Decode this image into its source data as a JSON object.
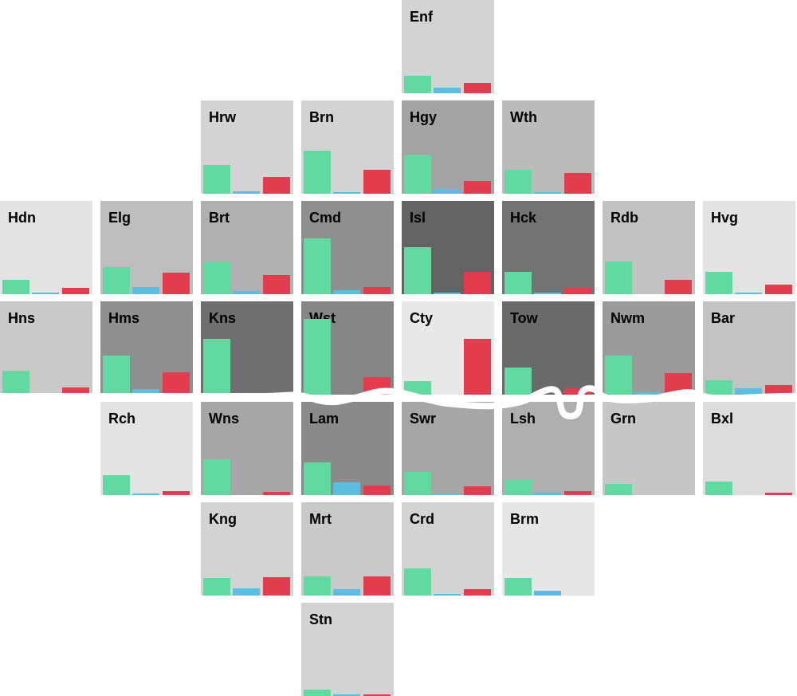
{
  "chart_data": {
    "type": "bar",
    "layout": "tile-grid map of boroughs",
    "colors": {
      "series1": "#62d9a0",
      "series2": "#5bbde0",
      "series3": "#e23d4f"
    },
    "tiles": [
      {
        "code": "Enf",
        "col": 4,
        "row": 0,
        "shade": "#d3d3d3",
        "values": [
          0.21,
          0.07,
          0.12
        ]
      },
      {
        "code": "Hrw",
        "col": 2,
        "row": 1,
        "shade": "#d3d3d3",
        "values": [
          0.34,
          0.03,
          0.2
        ]
      },
      {
        "code": "Brn",
        "col": 3,
        "row": 1,
        "shade": "#d3d3d3",
        "values": [
          0.51,
          0.02,
          0.29
        ]
      },
      {
        "code": "Hgy",
        "col": 4,
        "row": 1,
        "shade": "#a3a3a3",
        "values": [
          0.47,
          0.06,
          0.15
        ]
      },
      {
        "code": "Wth",
        "col": 5,
        "row": 1,
        "shade": "#bbbbbb",
        "values": [
          0.29,
          0.01,
          0.25
        ]
      },
      {
        "code": "Hdn",
        "col": 0,
        "row": 2,
        "shade": "#e3e3e3",
        "values": [
          0.17,
          0.01,
          0.08
        ]
      },
      {
        "code": "Elg",
        "col": 1,
        "row": 2,
        "shade": "#bdbdbd",
        "values": [
          0.32,
          0.09,
          0.26
        ]
      },
      {
        "code": "Brt",
        "col": 2,
        "row": 2,
        "shade": "#b0b0b0",
        "values": [
          0.38,
          0.04,
          0.23
        ]
      },
      {
        "code": "Cmd",
        "col": 3,
        "row": 2,
        "shade": "#8f8f8f",
        "values": [
          0.67,
          0.05,
          0.09
        ]
      },
      {
        "code": "Isl",
        "col": 4,
        "row": 2,
        "shade": "#636363",
        "values": [
          0.56,
          0.02,
          0.27
        ]
      },
      {
        "code": "Hck",
        "col": 5,
        "row": 2,
        "shade": "#737373",
        "values": [
          0.27,
          0.01,
          0.08
        ]
      },
      {
        "code": "Rdb",
        "col": 6,
        "row": 2,
        "shade": "#c2c2c2",
        "values": [
          0.39,
          0.0,
          0.17
        ]
      },
      {
        "code": "Hvg",
        "col": 7,
        "row": 2,
        "shade": "#e3e3e3",
        "values": [
          0.27,
          0.02,
          0.11
        ]
      },
      {
        "code": "Hns",
        "col": 0,
        "row": 3,
        "shade": "#c9c9c9",
        "values": [
          0.29,
          0.02,
          0.09
        ]
      },
      {
        "code": "Hms",
        "col": 1,
        "row": 3,
        "shade": "#8f8f8f",
        "values": [
          0.47,
          0.07,
          0.27
        ]
      },
      {
        "code": "Kns",
        "col": 2,
        "row": 3,
        "shade": "#6f6f6f",
        "values": [
          0.67,
          0.0,
          0.0
        ]
      },
      {
        "code": "Wst",
        "col": 3,
        "row": 3,
        "shade": "#858585",
        "values": [
          0.9,
          0.0,
          0.21
        ]
      },
      {
        "code": "Cty",
        "col": 4,
        "row": 3,
        "shade": "#e8e8e8",
        "values": [
          0.16,
          0.0,
          0.67
        ]
      },
      {
        "code": "Tow",
        "col": 5,
        "row": 3,
        "shade": "#6a6a6a",
        "values": [
          0.32,
          0.0,
          0.08
        ]
      },
      {
        "code": "Nwm",
        "col": 6,
        "row": 3,
        "shade": "#9a9a9a",
        "values": [
          0.47,
          0.03,
          0.26
        ]
      },
      {
        "code": "Bar",
        "col": 7,
        "row": 3,
        "shade": "#c3c3c3",
        "values": [
          0.17,
          0.08,
          0.11
        ]
      },
      {
        "code": "Rch",
        "col": 1,
        "row": 4,
        "shade": "#e3e3e3",
        "values": [
          0.24,
          0.01,
          0.05
        ]
      },
      {
        "code": "Wns",
        "col": 2,
        "row": 4,
        "shade": "#a6a6a6",
        "values": [
          0.43,
          0.0,
          0.04
        ]
      },
      {
        "code": "Lam",
        "col": 3,
        "row": 4,
        "shade": "#8a8a8a",
        "values": [
          0.39,
          0.15,
          0.11
        ]
      },
      {
        "code": "Swr",
        "col": 4,
        "row": 4,
        "shade": "#a6a6a6",
        "values": [
          0.28,
          0.02,
          0.1
        ]
      },
      {
        "code": "Lsh",
        "col": 5,
        "row": 4,
        "shade": "#aeaeae",
        "values": [
          0.18,
          0.03,
          0.05
        ]
      },
      {
        "code": "Grn",
        "col": 6,
        "row": 4,
        "shade": "#c6c6c6",
        "values": [
          0.13,
          0.0,
          0.0
        ]
      },
      {
        "code": "Bxl",
        "col": 7,
        "row": 4,
        "shade": "#dcdcdc",
        "values": [
          0.16,
          0.0,
          0.03
        ]
      },
      {
        "code": "Kng",
        "col": 2,
        "row": 5,
        "shade": "#d3d3d3",
        "values": [
          0.21,
          0.09,
          0.22
        ]
      },
      {
        "code": "Mrt",
        "col": 3,
        "row": 5,
        "shade": "#c9c9c9",
        "values": [
          0.23,
          0.08,
          0.23
        ]
      },
      {
        "code": "Crd",
        "col": 4,
        "row": 5,
        "shade": "#d3d3d3",
        "values": [
          0.32,
          0.01,
          0.08
        ]
      },
      {
        "code": "Brm",
        "col": 5,
        "row": 5,
        "shade": "#e6e6e6",
        "values": [
          0.21,
          0.06,
          0.0
        ]
      },
      {
        "code": "Stn",
        "col": 3,
        "row": 6,
        "shade": "#d3d3d3",
        "values": [
          0.08,
          0.01,
          0.01
        ]
      }
    ]
  }
}
